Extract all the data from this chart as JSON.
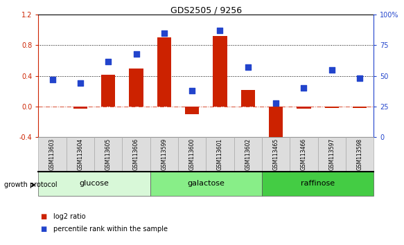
{
  "title": "GDS2505 / 9256",
  "samples": [
    "GSM113603",
    "GSM113604",
    "GSM113605",
    "GSM113606",
    "GSM113599",
    "GSM113600",
    "GSM113601",
    "GSM113602",
    "GSM113465",
    "GSM113466",
    "GSM113597",
    "GSM113598"
  ],
  "log2_ratio": [
    0.0,
    -0.03,
    0.42,
    0.5,
    0.9,
    -0.1,
    0.92,
    0.22,
    -0.5,
    -0.03,
    -0.02,
    -0.02
  ],
  "percentile_rank": [
    47,
    44,
    62,
    68,
    85,
    38,
    87,
    57,
    28,
    40,
    55,
    48
  ],
  "groups": [
    {
      "label": "glucose",
      "start": 0,
      "end": 4,
      "color": "#d8f8d8"
    },
    {
      "label": "galactose",
      "start": 4,
      "end": 8,
      "color": "#88ee88"
    },
    {
      "label": "raffinose",
      "start": 8,
      "end": 12,
      "color": "#44cc44"
    }
  ],
  "ylim_left": [
    -0.4,
    1.2
  ],
  "ylim_right": [
    0,
    100
  ],
  "yticks_left": [
    -0.4,
    0.0,
    0.4,
    0.8,
    1.2
  ],
  "yticks_right": [
    0,
    25,
    50,
    75,
    100
  ],
  "bar_color": "#cc2200",
  "dot_color": "#2244cc",
  "bar_width": 0.5,
  "dot_size": 40,
  "background_color": "#ffffff",
  "legend_log2": "log2 ratio",
  "legend_pct": "percentile rank within the sample",
  "growth_label": "growth protocol",
  "sample_box_color": "#dddddd",
  "sample_box_edge": "#aaaaaa"
}
